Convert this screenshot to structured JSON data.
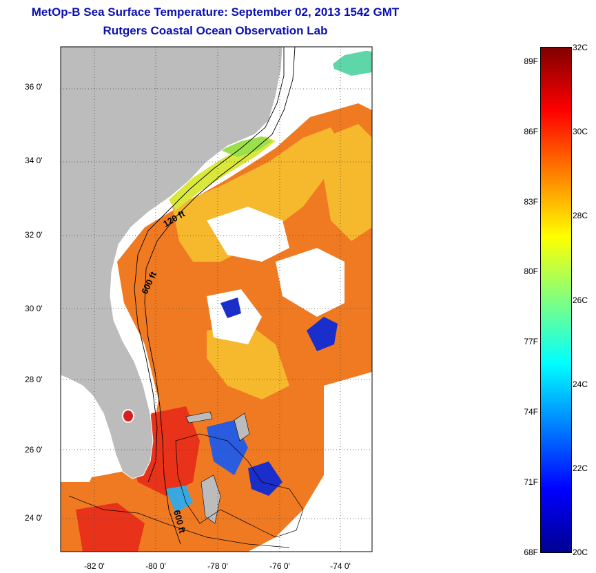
{
  "title": {
    "line1": "MetOp-B Sea Surface Temperature:  September 02, 2013 1542 GMT",
    "line2": "Rutgers Coastal Ocean Observation Lab"
  },
  "map": {
    "lat_ticks": [
      "36 0'",
      "34 0'",
      "32 0'",
      "30 0'",
      "28 0'",
      "26 0'",
      "24 0'"
    ],
    "lon_ticks": [
      "-82 0'",
      "-80 0'",
      "-78 0'",
      "-76 0'",
      "-74 0'"
    ],
    "contour_labels": [
      "120 ft",
      "600 ft",
      "600 ft"
    ],
    "colors": {
      "land": "#bcbcbc",
      "ocean_warm": "#f07a22",
      "ocean_hot": "#e8321a",
      "ocean_mid": "#f6b82c",
      "ocean_cool": "#d9e83a",
      "cold_patch": "#1a2ecc",
      "cloud": "#ffffff"
    }
  },
  "colorbar": {
    "fahrenheit_labels": [
      "89F",
      "86F",
      "83F",
      "80F",
      "77F",
      "74F",
      "71F",
      "68F"
    ],
    "celsius_labels": [
      "32C",
      "30C",
      "28C",
      "26C",
      "24C",
      "22C",
      "20C"
    ],
    "range_c": [
      20,
      32
    ],
    "colormap": "jet"
  }
}
